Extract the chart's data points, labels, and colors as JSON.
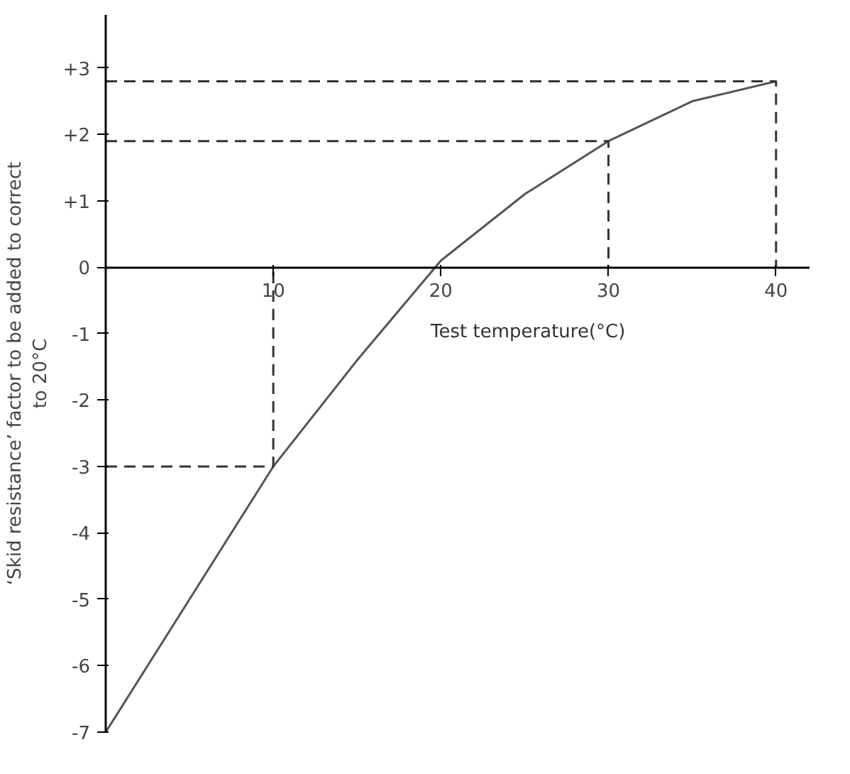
{
  "chart_data": {
    "type": "line",
    "xlabel": "Test temperature(°C)",
    "ylabel": "‘Skid resistance’ factor to be added to correct\nto 20°C",
    "xlim": [
      0,
      42
    ],
    "ylim": [
      -7,
      3.8
    ],
    "xticks": [
      10,
      20,
      30,
      40
    ],
    "yticks": [
      {
        "value": 3,
        "label": "+3"
      },
      {
        "value": 2,
        "label": "+2"
      },
      {
        "value": 1,
        "label": "+1"
      },
      {
        "value": 0,
        "label": "0"
      },
      {
        "value": -1,
        "label": "-1"
      },
      {
        "value": -2,
        "label": "-2"
      },
      {
        "value": -3,
        "label": "-3"
      },
      {
        "value": -4,
        "label": "-4"
      },
      {
        "value": -5,
        "label": "-5"
      },
      {
        "value": -6,
        "label": "-6"
      },
      {
        "value": -7,
        "label": "-7"
      }
    ],
    "grid": false,
    "marker": "none",
    "series": [
      {
        "color": "#555555",
        "line_style": "solid",
        "x": [
          0,
          5,
          10,
          15,
          20,
          25,
          30,
          35,
          40
        ],
        "values": [
          -7,
          -5,
          -3,
          -1.4,
          0.1,
          1.1,
          1.9,
          2.5,
          2.8
        ]
      },
      {
        "color": "#333333",
        "line_style": "dashed",
        "x": [
          0,
          10,
          10
        ],
        "values": [
          -3,
          -3,
          0
        ]
      },
      {
        "color": "#333333",
        "line_style": "dashed",
        "x": [
          0,
          30,
          30
        ],
        "values": [
          1.9,
          1.9,
          0
        ]
      },
      {
        "color": "#333333",
        "line_style": "dashed",
        "x": [
          0,
          40,
          40
        ],
        "values": [
          2.8,
          2.8,
          0
        ]
      }
    ]
  }
}
